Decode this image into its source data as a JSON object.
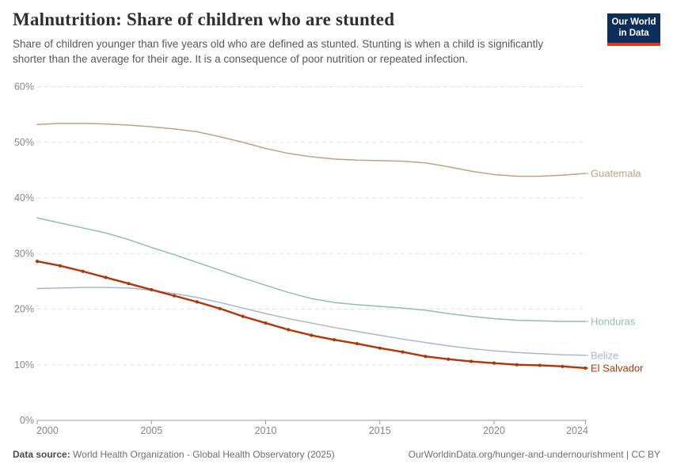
{
  "header": {
    "title": "Malnutrition: Share of children who are stunted",
    "subtitle_line1": "Share of children younger than five years old who are defined as stunted. Stunting is when a child is significantly",
    "subtitle_line2": "shorter than the average for their age. It is a consequence of poor nutrition or repeated infection.",
    "logo": {
      "line1": "Our World",
      "line2": "in Data",
      "bg_color": "#0d2e5a",
      "stripe_color": "#e2361d"
    }
  },
  "chart_data": {
    "type": "line",
    "title": "Malnutrition: Share of children who are stunted",
    "xlabel": "",
    "ylabel": "",
    "ylim": [
      0,
      60
    ],
    "ytick_suffix": "%",
    "yticks": [
      0,
      10,
      20,
      30,
      40,
      50,
      60
    ],
    "xticks": [
      2000,
      2005,
      2010,
      2015,
      2020,
      2024
    ],
    "grid": true,
    "legend_position": "right-end-labels",
    "x": [
      2000,
      2001,
      2002,
      2003,
      2004,
      2005,
      2006,
      2007,
      2008,
      2009,
      2010,
      2011,
      2012,
      2013,
      2014,
      2015,
      2016,
      2017,
      2018,
      2019,
      2020,
      2021,
      2022,
      2023,
      2024
    ],
    "series": [
      {
        "name": "Guatemala",
        "color": "#c3a183",
        "markers": false,
        "emphasis": false,
        "values": [
          53.2,
          53.4,
          53.4,
          53.3,
          53.1,
          52.8,
          52.4,
          51.9,
          51.0,
          50.0,
          48.9,
          48.0,
          47.4,
          47.0,
          46.8,
          46.7,
          46.6,
          46.3,
          45.6,
          44.8,
          44.2,
          43.9,
          43.9,
          44.1,
          44.4
        ]
      },
      {
        "name": "Honduras",
        "color": "#8fbfab",
        "markers": false,
        "emphasis": false,
        "values": [
          36.4,
          35.5,
          34.6,
          33.7,
          32.5,
          31.1,
          29.8,
          28.4,
          27.0,
          25.6,
          24.3,
          23.0,
          21.9,
          21.2,
          20.8,
          20.5,
          20.2,
          19.8,
          19.2,
          18.7,
          18.3,
          18.0,
          17.9,
          17.8,
          17.8
        ]
      },
      {
        "name": "Belize",
        "color": "#a5b8d3",
        "markers": false,
        "emphasis": false,
        "values": [
          23.7,
          23.8,
          23.9,
          23.9,
          23.8,
          23.4,
          22.8,
          22.1,
          21.2,
          20.2,
          19.2,
          18.3,
          17.5,
          16.7,
          16.0,
          15.3,
          14.6,
          14.0,
          13.4,
          12.9,
          12.5,
          12.2,
          12.0,
          11.8,
          11.7
        ]
      },
      {
        "name": "El Salvador",
        "color": "#b13507",
        "markers": true,
        "emphasis": true,
        "values": [
          28.6,
          27.8,
          26.8,
          25.7,
          24.6,
          23.5,
          22.4,
          21.3,
          20.1,
          18.7,
          17.5,
          16.3,
          15.3,
          14.5,
          13.8,
          13.0,
          12.3,
          11.5,
          11.0,
          10.6,
          10.3,
          10.0,
          9.9,
          9.7,
          9.4
        ]
      }
    ]
  },
  "footer": {
    "source_label": "Data source:",
    "source_text": "World Health Organization - Global Health Observatory (2025)",
    "license_text": "OurWorldinData.org/hunger-and-undernourishment | CC BY"
  }
}
